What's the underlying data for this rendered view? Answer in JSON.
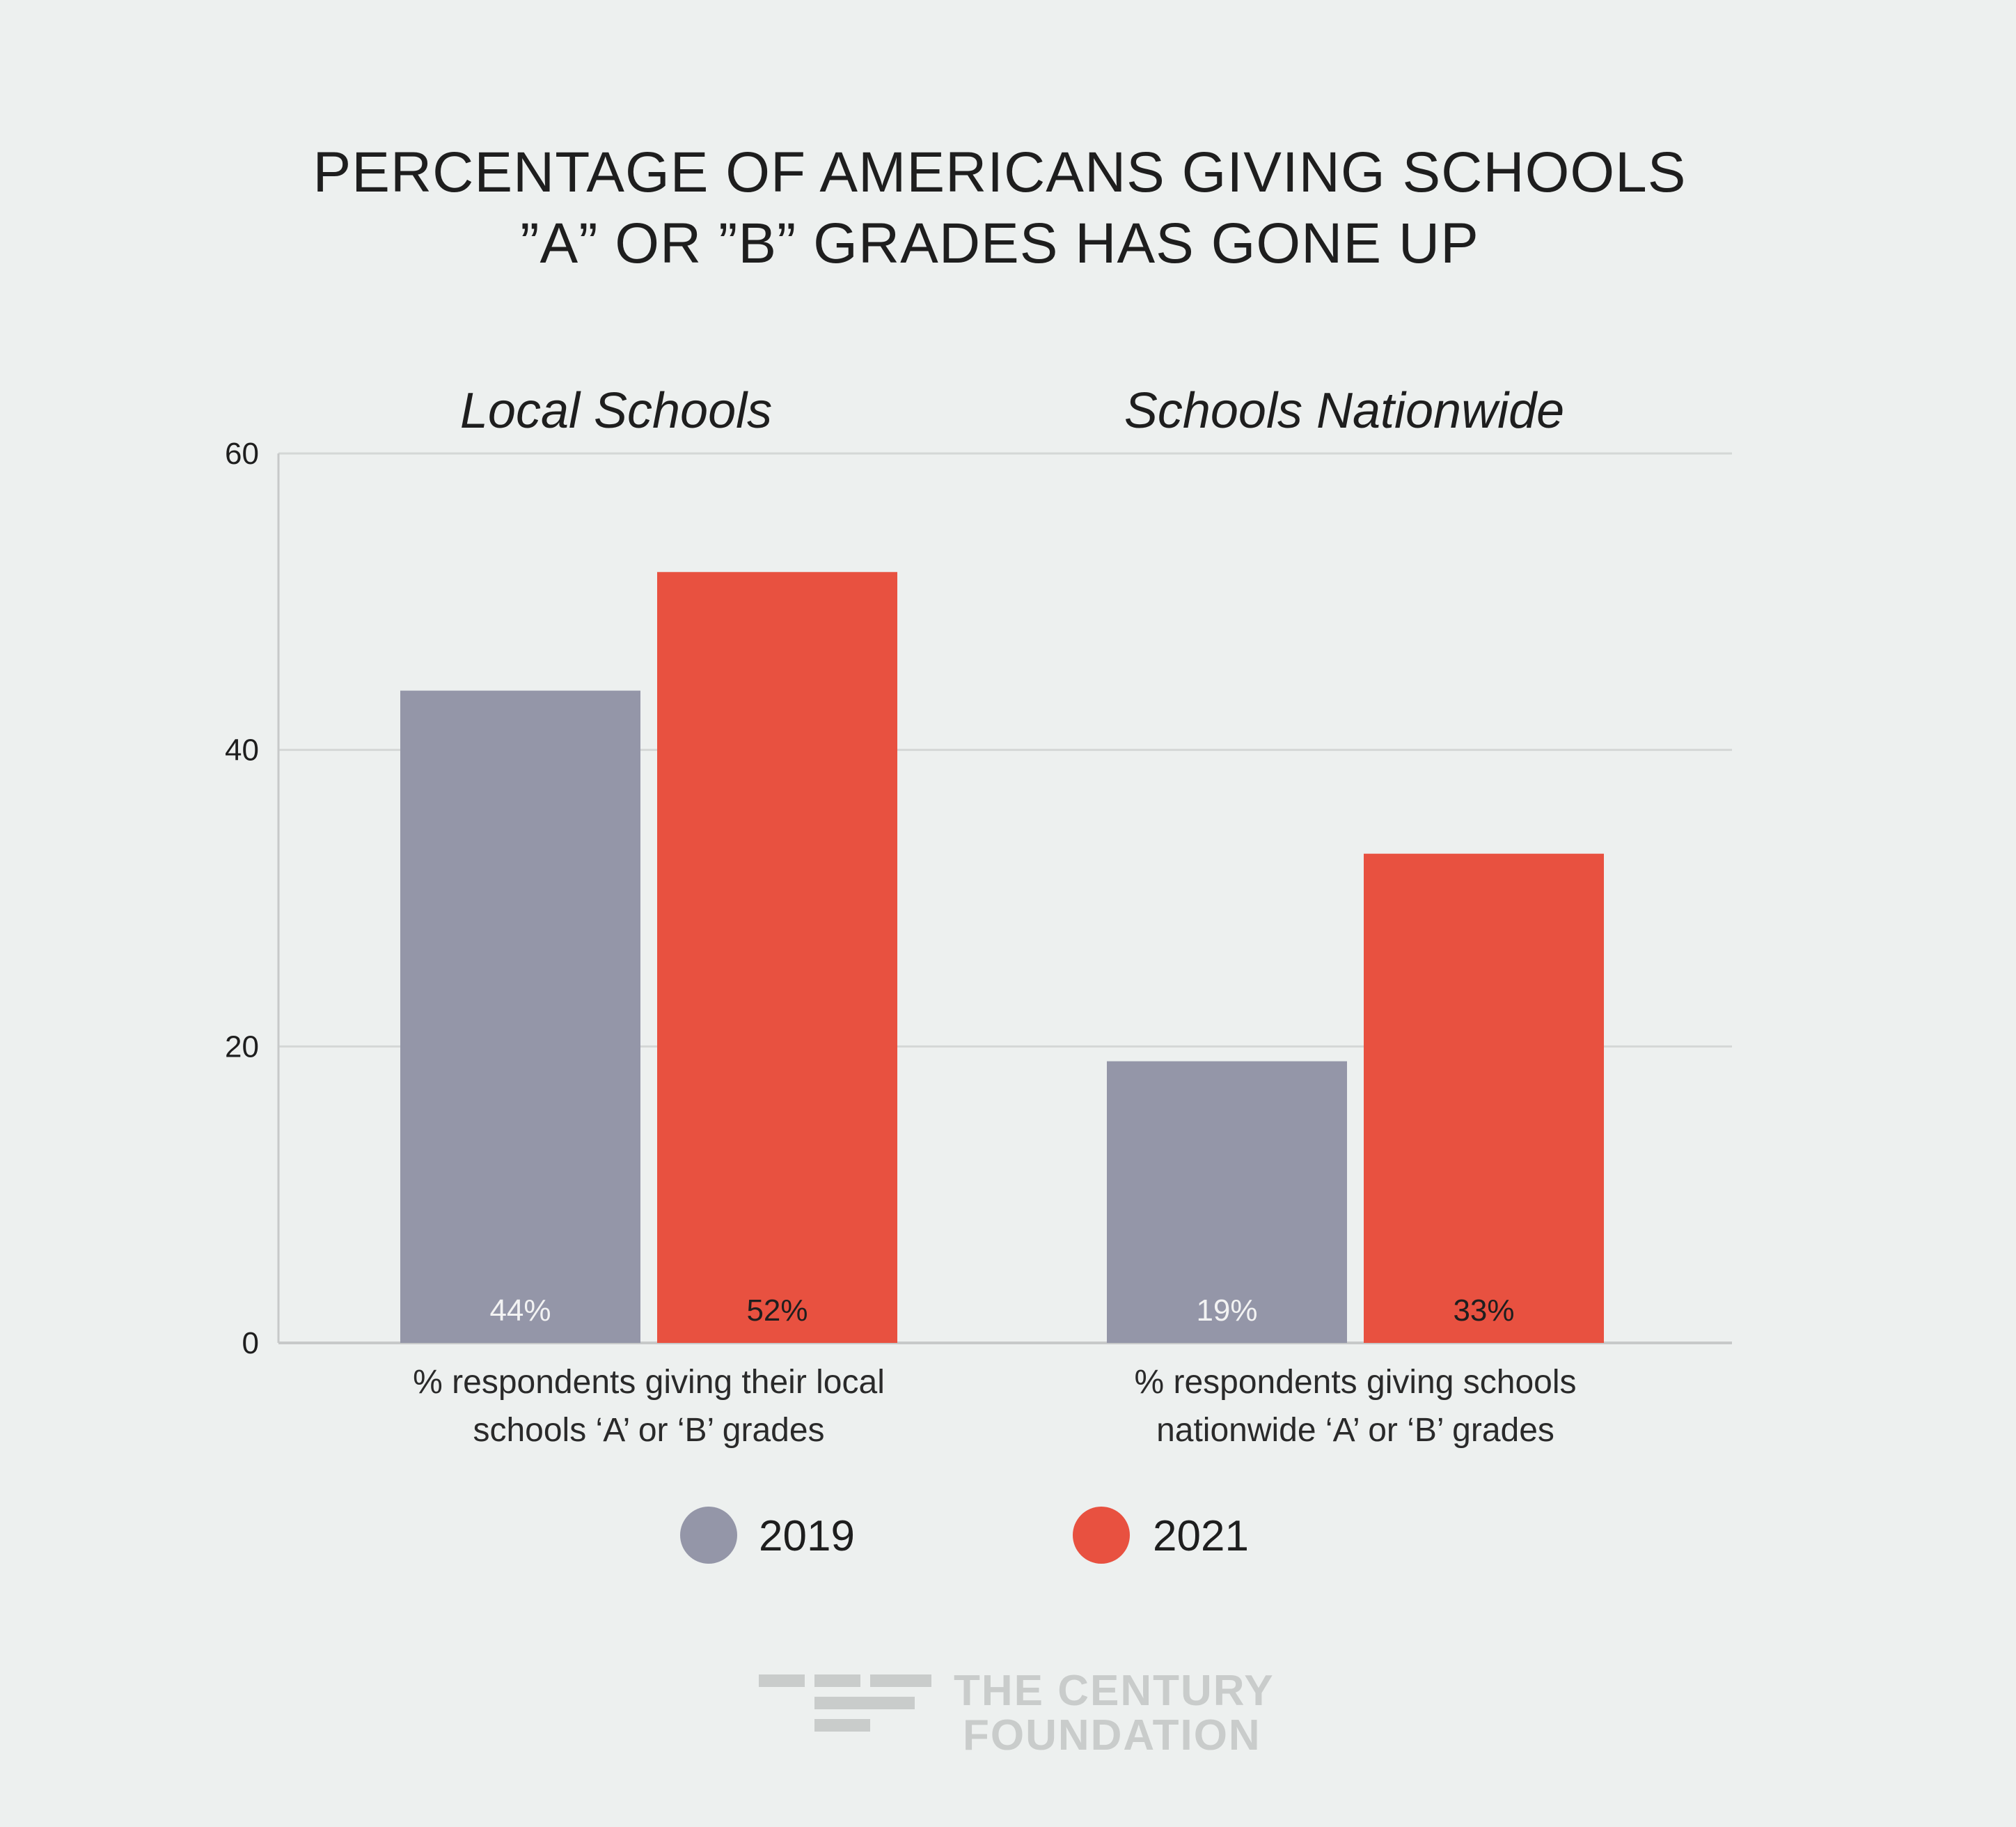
{
  "chart_data": {
    "type": "bar",
    "title_lines": [
      "PERCENTAGE OF AMERICANS GIVING SCHOOLS",
      "”A” OR ”B” GRADES HAS GONE UP"
    ],
    "panel_titles": [
      "Local Schools",
      "Schools Nationwide"
    ],
    "categories": [
      [
        "% respondents giving their local",
        "schools ‘A’ or  ‘B’ grades"
      ],
      [
        "% respondents giving schools",
        "nationwide ‘A’ or  ‘B’ grades"
      ]
    ],
    "series": [
      {
        "name": "2019",
        "color": "#9496a8",
        "label_color": "#f3f3f3",
        "values": [
          44,
          19
        ],
        "labels": [
          "44%",
          "19%"
        ]
      },
      {
        "name": "2021",
        "color": "#e85140",
        "label_color": "#1e1e1e",
        "values": [
          52,
          33
        ],
        "labels": [
          "52%",
          "33%"
        ]
      }
    ],
    "ylim": [
      0,
      60
    ],
    "yticks": [
      0,
      20,
      40,
      60
    ],
    "grid": true,
    "legend_position": "bottom"
  },
  "branding": {
    "logo_line1": "THE CENTURY",
    "logo_line2": "FOUNDATION",
    "logo_icon": "century-foundation-logo-icon"
  }
}
